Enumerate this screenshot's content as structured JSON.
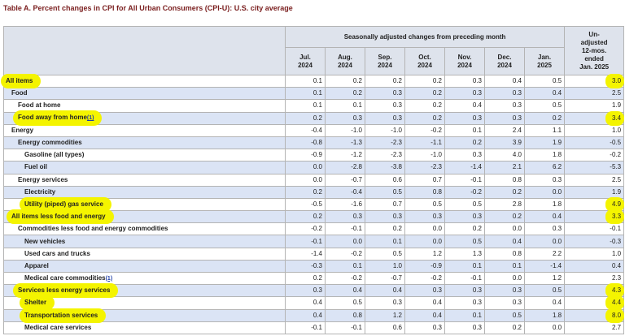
{
  "title": "Table A. Percent changes in CPI for All Urban Consumers (CPI-U): U.S. city average",
  "header": {
    "group_label": "Seasonally adjusted changes from preceding month",
    "last_column": [
      "Un-",
      "adjusted",
      "12-mos.",
      "ended",
      "Jan. 2025"
    ],
    "months": [
      {
        "month": "Jul.",
        "year": "2024"
      },
      {
        "month": "Aug.",
        "year": "2024"
      },
      {
        "month": "Sep.",
        "year": "2024"
      },
      {
        "month": "Oct.",
        "year": "2024"
      },
      {
        "month": "Nov.",
        "year": "2024"
      },
      {
        "month": "Dec.",
        "year": "2024"
      },
      {
        "month": "Jan.",
        "year": "2025"
      }
    ]
  },
  "rows": [
    {
      "label": "All items",
      "footnote": "",
      "indent": 0,
      "highlight": true,
      "values": [
        "0.1",
        "0.2",
        "0.2",
        "0.2",
        "0.3",
        "0.4",
        "0.5"
      ],
      "annual": "3.0",
      "annual_highlight": true
    },
    {
      "label": "Food",
      "footnote": "",
      "indent": 1,
      "highlight": false,
      "values": [
        "0.1",
        "0.2",
        "0.3",
        "0.2",
        "0.3",
        "0.3",
        "0.4"
      ],
      "annual": "2.5",
      "annual_highlight": false
    },
    {
      "label": "Food at home",
      "footnote": "",
      "indent": 2,
      "highlight": false,
      "values": [
        "0.1",
        "0.1",
        "0.3",
        "0.2",
        "0.4",
        "0.3",
        "0.5"
      ],
      "annual": "1.9",
      "annual_highlight": false
    },
    {
      "label": "Food away from home",
      "footnote": "(1)",
      "indent": 2,
      "highlight": true,
      "values": [
        "0.2",
        "0.3",
        "0.3",
        "0.2",
        "0.3",
        "0.3",
        "0.2"
      ],
      "annual": "3.4",
      "annual_highlight": true
    },
    {
      "label": "Energy",
      "footnote": "",
      "indent": 1,
      "highlight": false,
      "values": [
        "-0.4",
        "-1.0",
        "-1.0",
        "-0.2",
        "0.1",
        "2.4",
        "1.1"
      ],
      "annual": "1.0",
      "annual_highlight": false
    },
    {
      "label": "Energy commodities",
      "footnote": "",
      "indent": 2,
      "highlight": false,
      "values": [
        "-0.8",
        "-1.3",
        "-2.3",
        "-1.1",
        "0.2",
        "3.9",
        "1.9"
      ],
      "annual": "-0.5",
      "annual_highlight": false
    },
    {
      "label": "Gasoline (all types)",
      "footnote": "",
      "indent": 3,
      "highlight": false,
      "values": [
        "-0.9",
        "-1.2",
        "-2.3",
        "-1.0",
        "0.3",
        "4.0",
        "1.8"
      ],
      "annual": "-0.2",
      "annual_highlight": false
    },
    {
      "label": "Fuel oil",
      "footnote": "",
      "indent": 3,
      "highlight": false,
      "values": [
        "0.0",
        "-2.8",
        "-3.8",
        "-2.3",
        "-1.4",
        "2.1",
        "6.2"
      ],
      "annual": "-5.3",
      "annual_highlight": false
    },
    {
      "label": "Energy services",
      "footnote": "",
      "indent": 2,
      "highlight": false,
      "values": [
        "0.0",
        "-0.7",
        "0.6",
        "0.7",
        "-0.1",
        "0.8",
        "0.3"
      ],
      "annual": "2.5",
      "annual_highlight": false
    },
    {
      "label": "Electricity",
      "footnote": "",
      "indent": 3,
      "highlight": false,
      "values": [
        "0.2",
        "-0.4",
        "0.5",
        "0.8",
        "-0.2",
        "0.2",
        "0.0"
      ],
      "annual": "1.9",
      "annual_highlight": false
    },
    {
      "label": "Utility (piped) gas service",
      "footnote": "",
      "indent": 3,
      "highlight": true,
      "values": [
        "-0.5",
        "-1.6",
        "0.7",
        "0.5",
        "0.5",
        "2.8",
        "1.8"
      ],
      "annual": "4.9",
      "annual_highlight": true
    },
    {
      "label": "All items less food and energy",
      "footnote": "",
      "indent": 1,
      "highlight": true,
      "values": [
        "0.2",
        "0.3",
        "0.3",
        "0.3",
        "0.3",
        "0.2",
        "0.4"
      ],
      "annual": "3.3",
      "annual_highlight": true
    },
    {
      "label": "Commodities less food and energy commodities",
      "footnote": "",
      "indent": 2,
      "highlight": false,
      "values": [
        "-0.2",
        "-0.1",
        "0.2",
        "0.0",
        "0.2",
        "0.0",
        "0.3"
      ],
      "annual": "-0.1",
      "annual_highlight": false
    },
    {
      "label": "New vehicles",
      "footnote": "",
      "indent": 3,
      "highlight": false,
      "values": [
        "-0.1",
        "0.0",
        "0.1",
        "0.0",
        "0.5",
        "0.4",
        "0.0"
      ],
      "annual": "-0.3",
      "annual_highlight": false
    },
    {
      "label": "Used cars and trucks",
      "footnote": "",
      "indent": 3,
      "highlight": false,
      "values": [
        "-1.4",
        "-0.2",
        "0.5",
        "1.2",
        "1.3",
        "0.8",
        "2.2"
      ],
      "annual": "1.0",
      "annual_highlight": false
    },
    {
      "label": "Apparel",
      "footnote": "",
      "indent": 3,
      "highlight": false,
      "values": [
        "-0.3",
        "0.1",
        "1.0",
        "-0.9",
        "0.1",
        "0.1",
        "-1.4"
      ],
      "annual": "0.4",
      "annual_highlight": false
    },
    {
      "label": "Medical care commodities",
      "footnote": "(1)",
      "indent": 3,
      "highlight": false,
      "values": [
        "0.2",
        "-0.2",
        "-0.7",
        "-0.2",
        "-0.1",
        "0.0",
        "1.2"
      ],
      "annual": "2.3",
      "annual_highlight": false
    },
    {
      "label": "Services less energy services",
      "footnote": "",
      "indent": 2,
      "highlight": true,
      "values": [
        "0.3",
        "0.4",
        "0.4",
        "0.3",
        "0.3",
        "0.3",
        "0.5"
      ],
      "annual": "4.3",
      "annual_highlight": true
    },
    {
      "label": "Shelter",
      "footnote": "",
      "indent": 3,
      "highlight": true,
      "values": [
        "0.4",
        "0.5",
        "0.3",
        "0.4",
        "0.3",
        "0.3",
        "0.4"
      ],
      "annual": "4.4",
      "annual_highlight": true
    },
    {
      "label": "Transportation services",
      "footnote": "",
      "indent": 3,
      "highlight": true,
      "values": [
        "0.4",
        "0.8",
        "1.2",
        "0.4",
        "0.1",
        "0.5",
        "1.8"
      ],
      "annual": "8.0",
      "annual_highlight": true
    },
    {
      "label": "Medical care services",
      "footnote": "",
      "indent": 3,
      "highlight": false,
      "values": [
        "-0.1",
        "-0.1",
        "0.6",
        "0.3",
        "0.3",
        "0.2",
        "0.0"
      ],
      "annual": "2.7",
      "annual_highlight": false
    }
  ],
  "colors": {
    "title": "#7a1e1e",
    "header_bg": "#dee3ec",
    "alt_row_bg": "#dbe4f5",
    "highlight": "#f4f400",
    "border": "#b4b4b4",
    "footnote_link": "#1f3fa8"
  }
}
